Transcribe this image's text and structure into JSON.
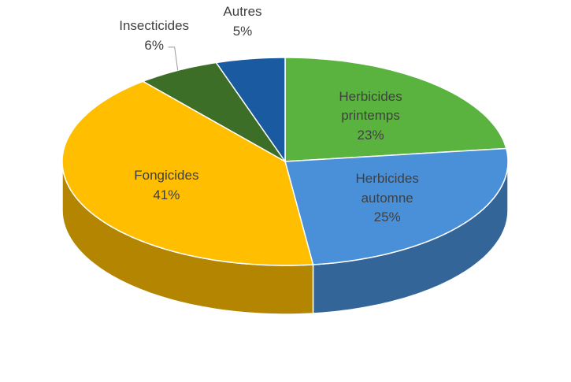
{
  "chart_data": {
    "type": "pie3d",
    "categories": [
      "Herbicides printemps",
      "Herbicides automne",
      "Fongicides",
      "Insecticides",
      "Autres"
    ],
    "values": [
      23,
      25,
      41,
      6,
      5
    ],
    "value_labels": [
      "23%",
      "25%",
      "41%",
      "6%",
      "5%"
    ],
    "colors": [
      "#5bb33f",
      "#4a90d9",
      "#ffbe00",
      "#3c6e27",
      "#1a5aa0"
    ]
  }
}
